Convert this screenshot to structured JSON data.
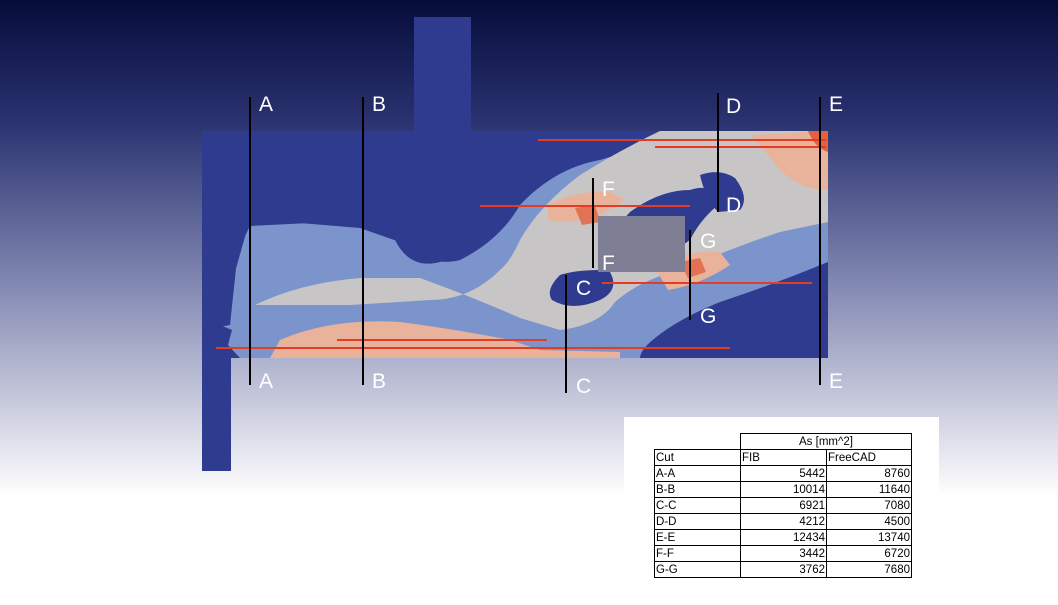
{
  "cuts": {
    "A": "A",
    "B": "B",
    "C": "C",
    "D": "D",
    "E": "E",
    "F": "F",
    "G": "G"
  },
  "table": {
    "group_header": "As [mm^2]",
    "headers": [
      "Cut",
      "FIB",
      "FreeCAD"
    ],
    "rows": [
      {
        "cut": "A-A",
        "fib": "5442",
        "freecad": "8760"
      },
      {
        "cut": "B-B",
        "fib": "10014",
        "freecad": "11640"
      },
      {
        "cut": "C-C",
        "fib": "6921",
        "freecad": "7080"
      },
      {
        "cut": "D-D",
        "fib": "4212",
        "freecad": "4500"
      },
      {
        "cut": "E-E",
        "fib": "12434",
        "freecad": "13740"
      },
      {
        "cut": "F-F",
        "fib": "3442",
        "freecad": "6720"
      },
      {
        "cut": "G-G",
        "fib": "3762",
        "freecad": "7680"
      }
    ]
  },
  "colors": {
    "plate_base": "#2e3b8e",
    "stress_low": "#7b95cc",
    "stress_mid": "#c8c5c6",
    "stress_high": "#e8b39a",
    "stress_peak": "#e0623e",
    "hole": "#7e7f94",
    "cut_line": "#000000",
    "rebar_line": "#e33b24"
  }
}
